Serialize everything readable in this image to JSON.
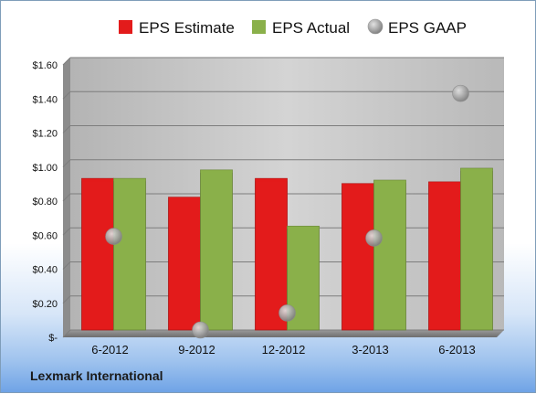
{
  "chart_data": {
    "type": "bar",
    "categories": [
      "6-2012",
      "9-2012",
      "12-2012",
      "3-2013",
      "6-2013"
    ],
    "series": [
      {
        "name": "EPS Estimate",
        "kind": "bar",
        "color": "#e31b1b",
        "values": [
          0.89,
          0.78,
          0.89,
          0.86,
          0.87
        ]
      },
      {
        "name": "EPS Actual",
        "kind": "bar",
        "color": "#8ab04a",
        "values": [
          0.89,
          0.94,
          0.61,
          0.88,
          0.95
        ]
      },
      {
        "name": "EPS GAAP",
        "kind": "marker",
        "color": "#a8a8a8",
        "values": [
          0.55,
          0.0,
          0.1,
          0.54,
          1.39
        ]
      }
    ],
    "ylim": [
      0,
      1.6
    ],
    "yticks": [
      0,
      0.2,
      0.4,
      0.6,
      0.8,
      1.0,
      1.2,
      1.4,
      1.6
    ],
    "ytick_labels": [
      "$-",
      "$0.20",
      "$0.40",
      "$0.60",
      "$0.80",
      "$1.00",
      "$1.20",
      "$1.40",
      "$1.60"
    ],
    "grid": true,
    "legend_position": "top",
    "plot_background": "#c3c3c3"
  },
  "footer": {
    "company": "Lexmark International"
  }
}
